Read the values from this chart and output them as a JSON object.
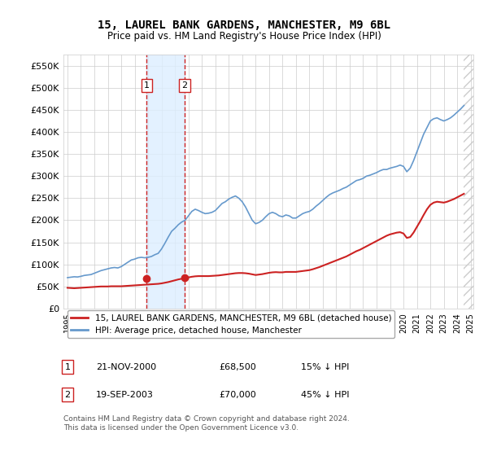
{
  "title": "15, LAUREL BANK GARDENS, MANCHESTER, M9 6BL",
  "subtitle": "Price paid vs. HM Land Registry's House Price Index (HPI)",
  "hpi_color": "#6699cc",
  "price_color": "#cc2222",
  "shade_color": "#ddeeff",
  "ylim": [
    0,
    575000
  ],
  "yticks": [
    0,
    50000,
    100000,
    150000,
    200000,
    250000,
    300000,
    350000,
    400000,
    450000,
    500000,
    550000
  ],
  "ytick_labels": [
    "£0",
    "£50K",
    "£100K",
    "£150K",
    "£200K",
    "£250K",
    "£300K",
    "£350K",
    "£400K",
    "£450K",
    "£500K",
    "£550K"
  ],
  "sale1_date": 2000.9,
  "sale1_price": 68500,
  "sale1_label": "1",
  "sale2_date": 2003.72,
  "sale2_price": 70000,
  "sale2_label": "2",
  "legend_line1": "15, LAUREL BANK GARDENS, MANCHESTER, M9 6BL (detached house)",
  "legend_line2": "HPI: Average price, detached house, Manchester",
  "table_row1": [
    "1",
    "21-NOV-2000",
    "£68,500",
    "15% ↓ HPI"
  ],
  "table_row2": [
    "2",
    "19-SEP-2003",
    "£70,000",
    "45% ↓ HPI"
  ],
  "footer": "Contains HM Land Registry data © Crown copyright and database right 2024.\nThis data is licensed under the Open Government Licence v3.0.",
  "xstart": 1995,
  "xend": 2025,
  "hpi_data": {
    "years": [
      1995.0,
      1995.25,
      1995.5,
      1995.75,
      1996.0,
      1996.25,
      1996.5,
      1996.75,
      1997.0,
      1997.25,
      1997.5,
      1997.75,
      1998.0,
      1998.25,
      1998.5,
      1998.75,
      1999.0,
      1999.25,
      1999.5,
      1999.75,
      2000.0,
      2000.25,
      2000.5,
      2000.75,
      2001.0,
      2001.25,
      2001.5,
      2001.75,
      2002.0,
      2002.25,
      2002.5,
      2002.75,
      2003.0,
      2003.25,
      2003.5,
      2003.75,
      2004.0,
      2004.25,
      2004.5,
      2004.75,
      2005.0,
      2005.25,
      2005.5,
      2005.75,
      2006.0,
      2006.25,
      2006.5,
      2006.75,
      2007.0,
      2007.25,
      2007.5,
      2007.75,
      2008.0,
      2008.25,
      2008.5,
      2008.75,
      2009.0,
      2009.25,
      2009.5,
      2009.75,
      2010.0,
      2010.25,
      2010.5,
      2010.75,
      2011.0,
      2011.25,
      2011.5,
      2011.75,
      2012.0,
      2012.25,
      2012.5,
      2012.75,
      2013.0,
      2013.25,
      2013.5,
      2013.75,
      2014.0,
      2014.25,
      2014.5,
      2014.75,
      2015.0,
      2015.25,
      2015.5,
      2015.75,
      2016.0,
      2016.25,
      2016.5,
      2016.75,
      2017.0,
      2017.25,
      2017.5,
      2017.75,
      2018.0,
      2018.25,
      2018.5,
      2018.75,
      2019.0,
      2019.25,
      2019.5,
      2019.75,
      2020.0,
      2020.25,
      2020.5,
      2020.75,
      2021.0,
      2021.25,
      2021.5,
      2021.75,
      2022.0,
      2022.25,
      2022.5,
      2022.75,
      2023.0,
      2023.25,
      2023.5,
      2023.75,
      2024.0,
      2024.25,
      2024.5
    ],
    "values": [
      70000,
      71000,
      72000,
      71500,
      73000,
      75000,
      76000,
      77000,
      80000,
      83000,
      86000,
      88000,
      90000,
      92000,
      93000,
      92000,
      95000,
      100000,
      105000,
      110000,
      112000,
      115000,
      116000,
      115000,
      116000,
      118000,
      122000,
      125000,
      135000,
      148000,
      162000,
      175000,
      182000,
      190000,
      196000,
      200000,
      210000,
      220000,
      225000,
      222000,
      218000,
      215000,
      216000,
      218000,
      222000,
      230000,
      238000,
      242000,
      248000,
      252000,
      255000,
      250000,
      242000,
      230000,
      215000,
      200000,
      192000,
      195000,
      200000,
      208000,
      215000,
      218000,
      215000,
      210000,
      208000,
      212000,
      210000,
      205000,
      205000,
      210000,
      215000,
      218000,
      220000,
      225000,
      232000,
      238000,
      245000,
      252000,
      258000,
      262000,
      265000,
      268000,
      272000,
      275000,
      280000,
      285000,
      290000,
      292000,
      295000,
      300000,
      302000,
      305000,
      308000,
      312000,
      315000,
      315000,
      318000,
      320000,
      322000,
      325000,
      322000,
      310000,
      318000,
      335000,
      355000,
      375000,
      395000,
      410000,
      425000,
      430000,
      432000,
      428000,
      425000,
      428000,
      432000,
      438000,
      445000,
      452000,
      460000
    ]
  },
  "price_data": {
    "years": [
      1995.0,
      1995.25,
      1995.5,
      1995.75,
      1996.0,
      1996.25,
      1996.5,
      1996.75,
      1997.0,
      1997.25,
      1997.5,
      1997.75,
      1998.0,
      1998.25,
      1998.5,
      1998.75,
      1999.0,
      1999.25,
      1999.5,
      1999.75,
      2000.0,
      2000.25,
      2000.5,
      2000.75,
      2001.0,
      2001.25,
      2001.5,
      2001.75,
      2002.0,
      2002.25,
      2002.5,
      2002.75,
      2003.0,
      2003.25,
      2003.5,
      2003.75,
      2004.0,
      2004.25,
      2004.5,
      2004.75,
      2005.0,
      2005.25,
      2005.5,
      2005.75,
      2006.0,
      2006.25,
      2006.5,
      2006.75,
      2007.0,
      2007.25,
      2007.5,
      2007.75,
      2008.0,
      2008.25,
      2008.5,
      2008.75,
      2009.0,
      2009.25,
      2009.5,
      2009.75,
      2010.0,
      2010.25,
      2010.5,
      2010.75,
      2011.0,
      2011.25,
      2011.5,
      2011.75,
      2012.0,
      2012.25,
      2012.5,
      2012.75,
      2013.0,
      2013.25,
      2013.5,
      2013.75,
      2014.0,
      2014.25,
      2014.5,
      2014.75,
      2015.0,
      2015.25,
      2015.5,
      2015.75,
      2016.0,
      2016.25,
      2016.5,
      2016.75,
      2017.0,
      2017.25,
      2017.5,
      2017.75,
      2018.0,
      2018.25,
      2018.5,
      2018.75,
      2019.0,
      2019.25,
      2019.5,
      2019.75,
      2020.0,
      2020.25,
      2020.5,
      2020.75,
      2021.0,
      2021.25,
      2021.5,
      2021.75,
      2022.0,
      2022.25,
      2022.5,
      2022.75,
      2023.0,
      2023.25,
      2023.5,
      2023.75,
      2024.0,
      2024.25,
      2024.5
    ],
    "values": [
      47000,
      46500,
      46000,
      46500,
      47000,
      47500,
      48000,
      48500,
      49000,
      49500,
      50000,
      50000,
      50000,
      50500,
      50500,
      50500,
      50500,
      51000,
      51500,
      52000,
      52500,
      53000,
      53500,
      54000,
      54500,
      55000,
      55500,
      56000,
      57000,
      58500,
      60000,
      62000,
      64000,
      66000,
      67500,
      69000,
      70500,
      72000,
      73000,
      73500,
      73500,
      73500,
      73500,
      74000,
      74500,
      75000,
      76000,
      77000,
      78000,
      79000,
      80000,
      80500,
      80500,
      80000,
      79000,
      77500,
      76000,
      77000,
      78000,
      79500,
      81000,
      82000,
      82500,
      82000,
      82000,
      83000,
      83000,
      83000,
      83000,
      84000,
      85000,
      86000,
      87000,
      89000,
      91500,
      94000,
      97000,
      100000,
      103000,
      106000,
      109000,
      112000,
      115000,
      118000,
      122000,
      126000,
      130000,
      133000,
      137000,
      141000,
      145000,
      149000,
      153000,
      157000,
      161000,
      165000,
      168000,
      170000,
      172000,
      173000,
      170000,
      160000,
      162000,
      172000,
      185000,
      198000,
      212000,
      225000,
      235000,
      240000,
      242000,
      241000,
      240000,
      242000,
      245000,
      248000,
      252000,
      256000,
      260000
    ]
  }
}
